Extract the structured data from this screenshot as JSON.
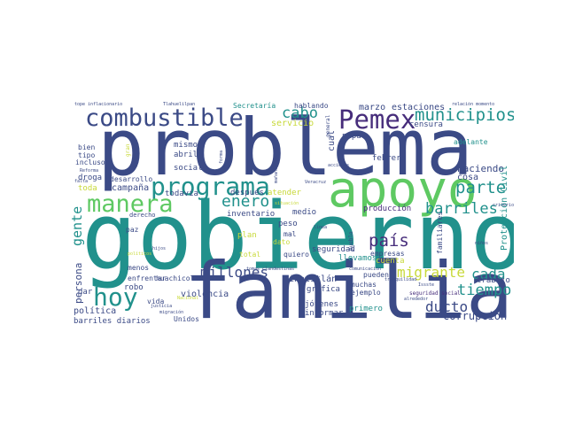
{
  "palette": {
    "dark_indigo": "#3b4a86",
    "deep_purple": "#472d7b",
    "teal": "#21918c",
    "green": "#5ec962",
    "light_green": "#8ed645",
    "yellow": "#c8d93a",
    "navy": "#2c3e75"
  },
  "words": {
    "problema": "problema",
    "gobierno": "gobierno",
    "familia": "familia",
    "apoyo": "apoyo",
    "combustible": "combustible",
    "pemex": "Pemex",
    "programa": "programa",
    "manera": "manera",
    "hoy": "hoy",
    "municipios": "municipios",
    "cabo": "cabo",
    "enero": "enero",
    "parte": "parte",
    "barriles": "barriles",
    "pais": "país",
    "migrante": "migrante",
    "cada": "cada",
    "tiempo": "tiempo",
    "ducto": "ducto",
    "corrupcion": "corrupción",
    "millones": "millones",
    "gente": "gente",
    "marzo": "marzo",
    "estaciones": "estaciones",
    "haciendo": "haciendo",
    "cosa": "cosa",
    "produccion": "producción",
    "inventario": "inventario",
    "despues": "después",
    "atender": "atender",
    "medio": "medio",
    "peso": "peso",
    "plan": "plan",
    "dato": "dato",
    "seguridad": "seguridad",
    "llevamos": "llevamos",
    "huachicol": "huachicol",
    "minatitlan": "Minatitlán",
    "grafica": "gráfica",
    "jovenes": "jóvenes",
    "informar": "informar",
    "primero": "primero",
    "ejemplo": "ejemplo",
    "muchas": "muchas",
    "pueden": "pueden",
    "empresas": "empresas",
    "persona": "persona",
    "politica": "política",
    "barriles_diarios": "barriles diarios",
    "violencia": "violencia",
    "robo": "robo",
    "enfrentar": "enfrentar",
    "dar": "dar",
    "menos": "menos",
    "campana": "campaña",
    "todavia": "todavía",
    "toda": "toda",
    "desarrollo": "desarrollo",
    "droga": "droga",
    "social": "social",
    "abril": "abril",
    "mismo": "mismo",
    "tipo": "tipo",
    "bien": "bien",
    "incluso": "incluso",
    "pipa": "pipa",
    "febrero": "febrero",
    "adelante": "adelante",
    "hablando": "hablando",
    "secretaria": "Secretaría",
    "servicio": "servicio",
    "trabajo": "trabajo",
    "proteccion_civil": "Protección Civil",
    "familiares": "familiares",
    "cual": "cual",
    "total": "total",
    "quiero": "quiero",
    "mal": "mal",
    "paz": "paz",
    "derecho": "derecho",
    "vida": "vida",
    "unidos": "Unidos",
    "cuenta": "cuenta",
    "censura": "censura",
    "relacion_momento": "relación momento",
    "tope_inflacionario": "tope inflacionario",
    "tlahuelilpan": "Tlahuelilpan",
    "seguridad_social": "seguridad social",
    "tranquilidad": "tranquilidad",
    "comunicacion": "comunicación",
    "alrededor": "alrededor",
    "temas_clandestinas": "tomas clandestinas",
    "veracruz": "Veracruz",
    "justicia": "justicia",
    "migracion": "migración",
    "politicos": "políticos",
    "hijos": "hijos",
    "ninos": "niños",
    "issste": "Issste",
    "pueblo": "pueblo",
    "general": "general",
    "falta": "falta",
    "reforma": "Reforma",
    "acciones": "acciones",
    "criterio": "criterio",
    "nacional": "Nacional",
    "situacion": "situación",
    "linea": "línea",
    "forma": "forma",
    "manana": "mañana",
    "gran": "gran",
    "almacenamiento": "almacenamiento",
    "diesel": "diésel",
    "siempre": "siempre",
    "gas": "gas",
    "agua": "agua",
    "nivel": "nivel",
    "frente": "frente",
    "ley": "ley",
    "caso": "caso",
    "hecho": "hecho",
    "area": "área"
  }
}
